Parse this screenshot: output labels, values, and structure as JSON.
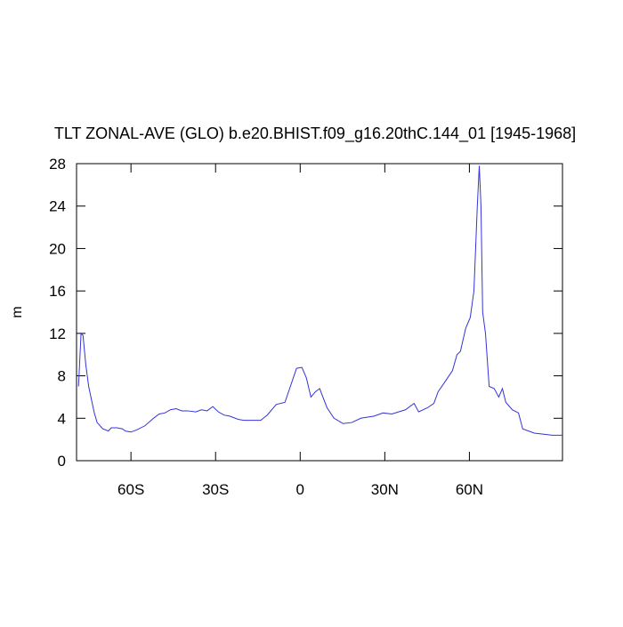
{
  "chart_data": {
    "type": "line",
    "title": "TLT ZONAL-AVE (GLO) b.e20.BHIST.f09_g16.20thC.144_01 [1945-1968]",
    "y_label": "m",
    "x": [
      -78.6,
      -77.7,
      -77,
      -76,
      -75,
      -73,
      -72,
      -70,
      -68,
      -67,
      -65,
      -63,
      -62,
      -60,
      -58,
      -55,
      -52,
      -50,
      -48,
      -46,
      -44,
      -42,
      -40,
      -37,
      -35,
      -33,
      -31,
      -29,
      -27,
      -25,
      -22,
      -20,
      -17,
      -14,
      -11.7,
      -8.5,
      -5.4,
      -1.3,
      0.6,
      2.2,
      3.8,
      5.4,
      6.9,
      9.5,
      12,
      15.2,
      18.3,
      21.5,
      26.2,
      29.4,
      32.5,
      37.3,
      40.4,
      42,
      45.2,
      47.4,
      48.9,
      51.5,
      54,
      55.6,
      56.8,
      58.7,
      60.3,
      61.6,
      62.8,
      63.5,
      64.1,
      64.7,
      65.7,
      67,
      68.8,
      70.4,
      71.7,
      72.9,
      75.2,
      77.4,
      78.9,
      83,
      89.4,
      93
    ],
    "series": [
      {
        "name": "TLT",
        "color": "#3333dd",
        "values": [
          7,
          12,
          11.8,
          9,
          7,
          4.5,
          3.6,
          3.0,
          2.8,
          3.1,
          3.1,
          3.0,
          2.8,
          2.7,
          2.9,
          3.3,
          4.0,
          4.4,
          4.5,
          4.8,
          4.9,
          4.7,
          4.7,
          4.6,
          4.8,
          4.7,
          5.1,
          4.6,
          4.3,
          4.2,
          3.9,
          3.8,
          3.8,
          3.8,
          4.3,
          5.3,
          5.5,
          8.7,
          8.8,
          7.8,
          6,
          6.5,
          6.8,
          5,
          4,
          3.5,
          3.6,
          4,
          4.2,
          4.5,
          4.4,
          4.8,
          5.4,
          4.6,
          5.0,
          5.4,
          6.5,
          7.5,
          8.5,
          10,
          10.3,
          12.5,
          13.5,
          16,
          24,
          27.8,
          24,
          14,
          12,
          7,
          6.8,
          6,
          6.8,
          5.5,
          4.8,
          4.5,
          3,
          2.6,
          2.4,
          2.4
        ]
      }
    ],
    "xlim": [
      -79.3,
      93
    ],
    "ylim": [
      0,
      28
    ],
    "xticks": [
      {
        "value": -60,
        "label": "60S"
      },
      {
        "value": -30,
        "label": "30S"
      },
      0,
      {
        "value": 30,
        "label": "30N"
      },
      {
        "value": 60,
        "label": "60N"
      }
    ],
    "yticks": [
      0,
      4,
      8,
      12,
      16,
      20,
      24,
      28
    ]
  }
}
